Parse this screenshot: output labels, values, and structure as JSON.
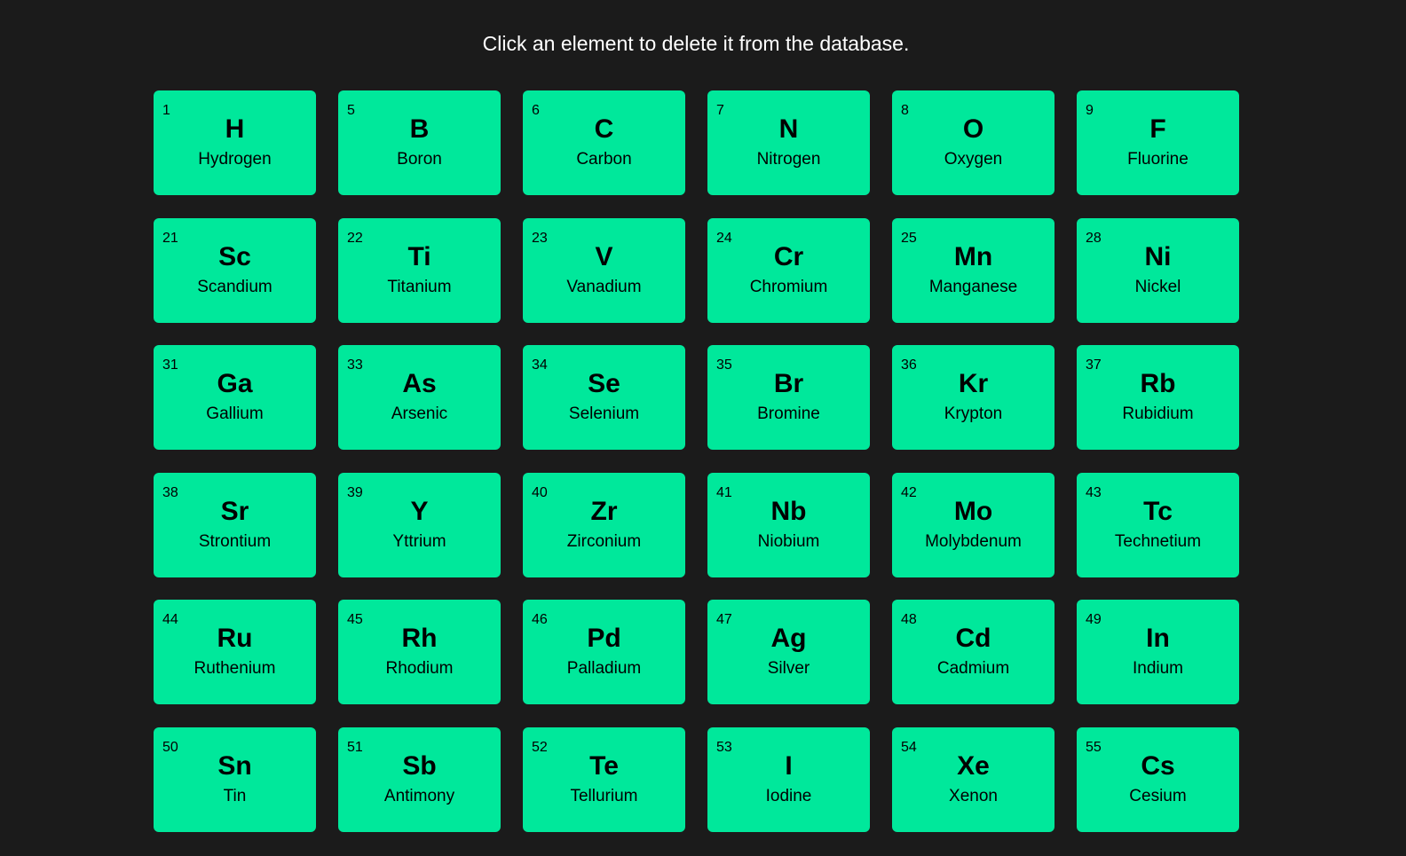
{
  "header": {
    "instruction": "Click an element to delete it from the database."
  },
  "colors": {
    "background": "#1b1b1b",
    "card": "#00e89b"
  },
  "elements": [
    {
      "number": "1",
      "symbol": "H",
      "name": "Hydrogen"
    },
    {
      "number": "5",
      "symbol": "B",
      "name": "Boron"
    },
    {
      "number": "6",
      "symbol": "C",
      "name": "Carbon"
    },
    {
      "number": "7",
      "symbol": "N",
      "name": "Nitrogen"
    },
    {
      "number": "8",
      "symbol": "O",
      "name": "Oxygen"
    },
    {
      "number": "9",
      "symbol": "F",
      "name": "Fluorine"
    },
    {
      "number": "21",
      "symbol": "Sc",
      "name": "Scandium"
    },
    {
      "number": "22",
      "symbol": "Ti",
      "name": "Titanium"
    },
    {
      "number": "23",
      "symbol": "V",
      "name": "Vanadium"
    },
    {
      "number": "24",
      "symbol": "Cr",
      "name": "Chromium"
    },
    {
      "number": "25",
      "symbol": "Mn",
      "name": "Manganese"
    },
    {
      "number": "28",
      "symbol": "Ni",
      "name": "Nickel"
    },
    {
      "number": "31",
      "symbol": "Ga",
      "name": "Gallium"
    },
    {
      "number": "33",
      "symbol": "As",
      "name": "Arsenic"
    },
    {
      "number": "34",
      "symbol": "Se",
      "name": "Selenium"
    },
    {
      "number": "35",
      "symbol": "Br",
      "name": "Bromine"
    },
    {
      "number": "36",
      "symbol": "Kr",
      "name": "Krypton"
    },
    {
      "number": "37",
      "symbol": "Rb",
      "name": "Rubidium"
    },
    {
      "number": "38",
      "symbol": "Sr",
      "name": "Strontium"
    },
    {
      "number": "39",
      "symbol": "Y",
      "name": "Yttrium"
    },
    {
      "number": "40",
      "symbol": "Zr",
      "name": "Zirconium"
    },
    {
      "number": "41",
      "symbol": "Nb",
      "name": "Niobium"
    },
    {
      "number": "42",
      "symbol": "Mo",
      "name": "Molybdenum"
    },
    {
      "number": "43",
      "symbol": "Tc",
      "name": "Technetium"
    },
    {
      "number": "44",
      "symbol": "Ru",
      "name": "Ruthenium"
    },
    {
      "number": "45",
      "symbol": "Rh",
      "name": "Rhodium"
    },
    {
      "number": "46",
      "symbol": "Pd",
      "name": "Palladium"
    },
    {
      "number": "47",
      "symbol": "Ag",
      "name": "Silver"
    },
    {
      "number": "48",
      "symbol": "Cd",
      "name": "Cadmium"
    },
    {
      "number": "49",
      "symbol": "In",
      "name": "Indium"
    },
    {
      "number": "50",
      "symbol": "Sn",
      "name": "Tin"
    },
    {
      "number": "51",
      "symbol": "Sb",
      "name": "Antimony"
    },
    {
      "number": "52",
      "symbol": "Te",
      "name": "Tellurium"
    },
    {
      "number": "53",
      "symbol": "I",
      "name": "Iodine"
    },
    {
      "number": "54",
      "symbol": "Xe",
      "name": "Xenon"
    },
    {
      "number": "55",
      "symbol": "Cs",
      "name": "Cesium"
    }
  ]
}
